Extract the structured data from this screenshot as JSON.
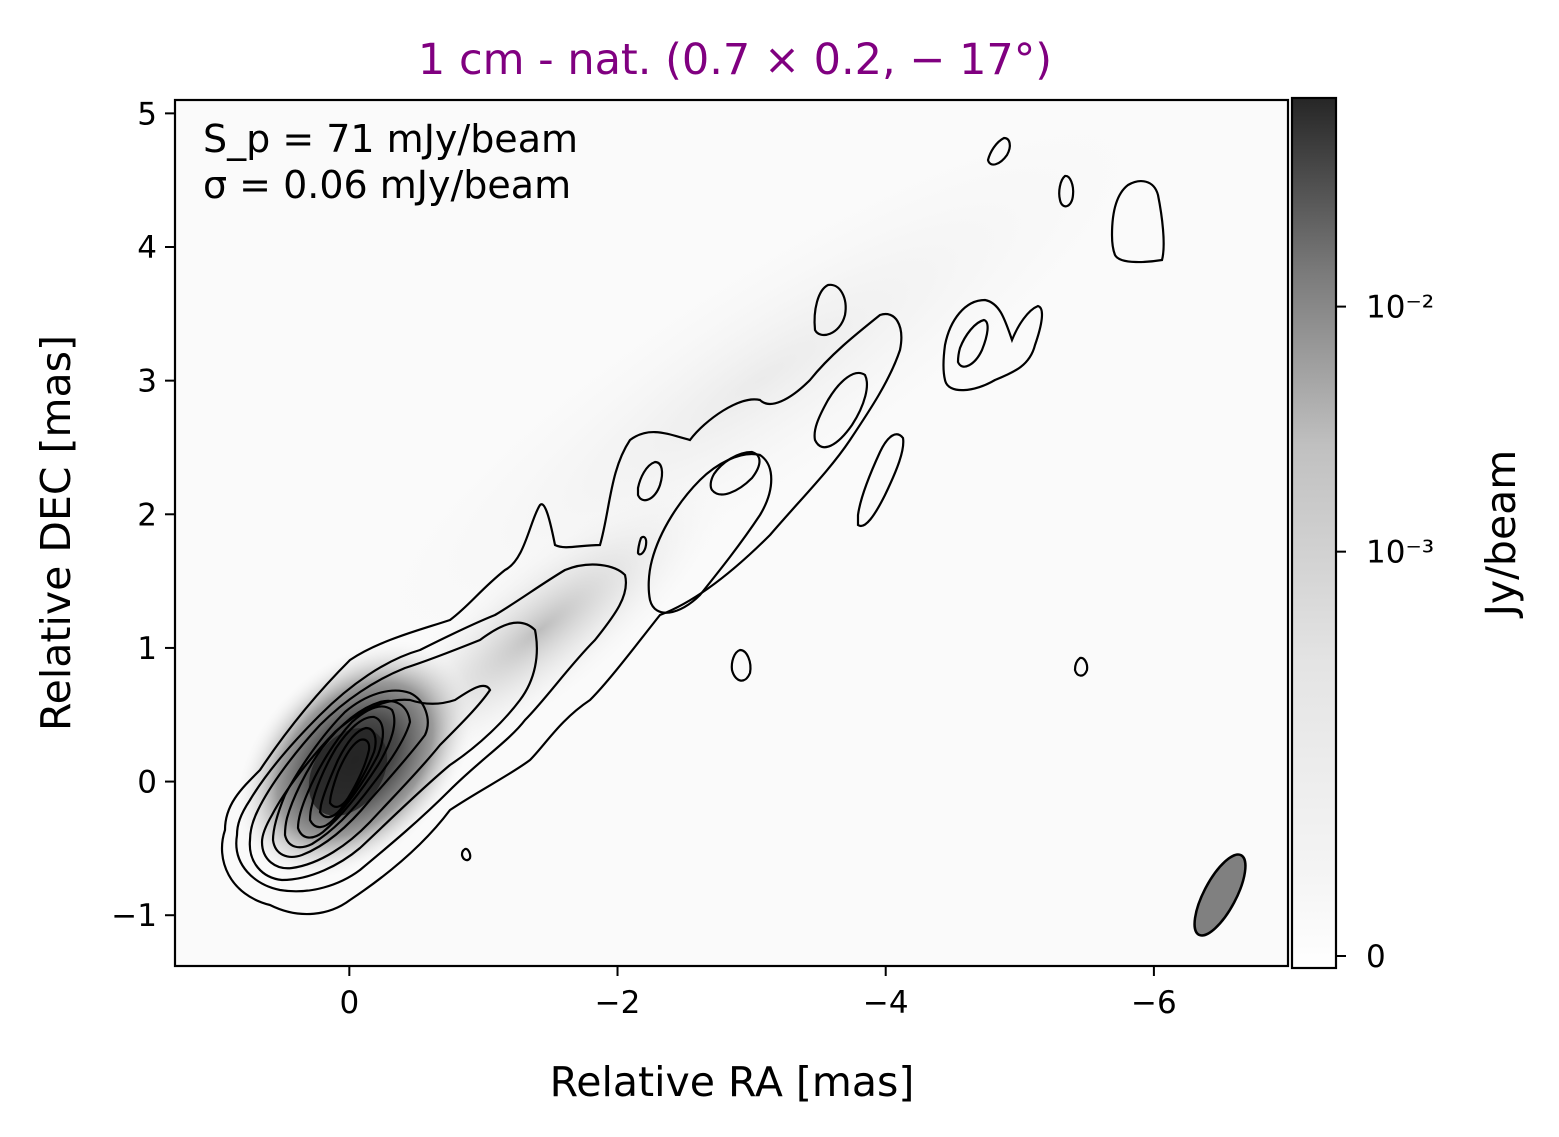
{
  "chart_data": {
    "type": "heatmap",
    "title": "1 cm - nat. (0.7 × 0.2, − 17°)",
    "title_color": "#800080",
    "xlabel": "Relative RA [mas]",
    "ylabel": "Relative DEC [mas]",
    "xlim": [
      1.3,
      -7.0
    ],
    "ylim": [
      -1.38,
      5.1
    ],
    "x_axis_inverted": true,
    "x_ticks": [
      0,
      -2,
      -4,
      -6
    ],
    "x_tick_labels": [
      "0",
      "−2",
      "−4",
      "−6"
    ],
    "y_ticks": [
      -1,
      0,
      1,
      2,
      3,
      4,
      5
    ],
    "y_tick_labels": [
      "−1",
      "0",
      "1",
      "2",
      "3",
      "4",
      "5"
    ],
    "grid": false,
    "colormap": "Greys (white → black)",
    "colorbar": {
      "label": "Jy/beam",
      "scale": "symlog",
      "ticks": [
        0,
        0.001,
        0.01
      ],
      "tick_labels": [
        "0",
        "10⁻³",
        "10⁻²"
      ],
      "max": 0.071
    },
    "annotations": {
      "peak": "S_p = 71 mJy/beam",
      "rms": "σ = 0.06 mJy/beam"
    },
    "peak_flux_mJy_per_beam": 71,
    "rms_mJy_per_beam": 0.06,
    "peak_position": [
      0.0,
      0.0
    ],
    "beam": {
      "major_mas": 0.7,
      "minor_mas": 0.2,
      "pa_deg": -17,
      "position": [
        -6.5,
        -0.8
      ],
      "color": "#808080"
    },
    "jet_direction": "core near origin, jet extending toward north-west (negative RA, positive DEC)"
  }
}
